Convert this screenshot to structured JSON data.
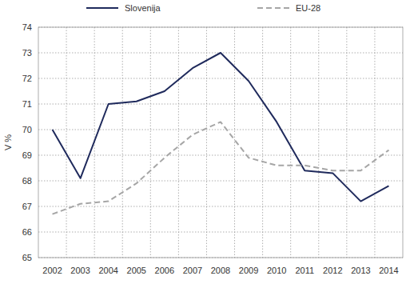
{
  "chart_data": {
    "type": "line",
    "y_label": "V %",
    "categories": [
      "2002",
      "2003",
      "2004",
      "2005",
      "2006",
      "2007",
      "2008",
      "2009",
      "2010",
      "2011",
      "2012",
      "2013",
      "2014"
    ],
    "series": [
      {
        "name": "Slovenija",
        "color": "#1f2a5c",
        "line_style": "solid",
        "values": [
          70.0,
          68.1,
          71.0,
          71.1,
          71.5,
          72.4,
          73.0,
          71.9,
          70.3,
          68.4,
          68.3,
          67.2,
          67.8
        ]
      },
      {
        "name": "EU-28",
        "color": "#a6a6a6",
        "line_style": "dashed",
        "values": [
          66.7,
          67.1,
          67.2,
          67.9,
          68.9,
          69.8,
          70.3,
          68.9,
          68.6,
          68.6,
          68.4,
          68.4,
          69.2
        ]
      }
    ],
    "ylim": [
      65,
      74
    ],
    "yticks": [
      65,
      66,
      67,
      68,
      69,
      70,
      71,
      72,
      73,
      74
    ],
    "grid": true,
    "legend": "top"
  }
}
